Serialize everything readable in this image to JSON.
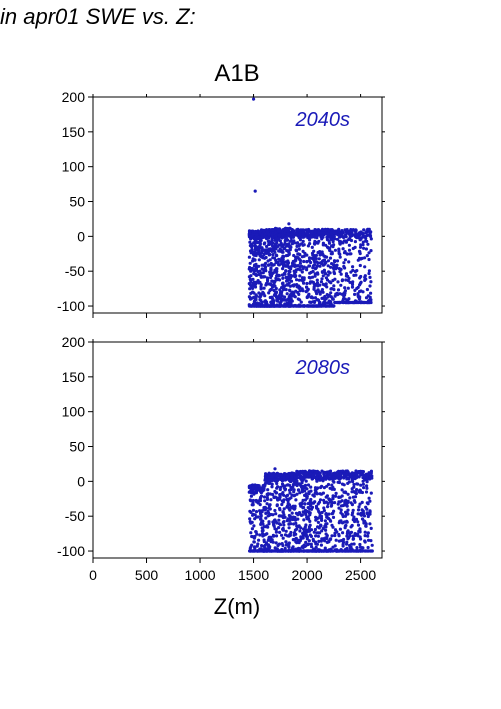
{
  "figure_title": "in apr01 SWE vs. Z:",
  "scenario_title": "A1B",
  "colors": {
    "points": "#1a1ab8",
    "period_label": "#1a1ab8",
    "axis": "#000000"
  },
  "chart_data": [
    {
      "type": "scatter",
      "panel_label": "2040s",
      "xlabel": "",
      "ylabel": "",
      "xlim": [
        0,
        2700
      ],
      "ylim": [
        -110,
        200
      ],
      "yticks": [
        -100,
        -50,
        0,
        50,
        100,
        150,
        200
      ],
      "xticks": [
        0,
        500,
        1000,
        1500,
        2000,
        2500
      ],
      "show_x_tick_labels": false,
      "grid": false,
      "outliers": [
        [
          1500,
          197
        ],
        [
          1515,
          65
        ],
        [
          1830,
          18
        ]
      ],
      "bands": [
        {
          "x0": 1460,
          "x1": 1560,
          "ymin": -100,
          "ymax": 8,
          "n": 260
        },
        {
          "x0": 1560,
          "x1": 1700,
          "ymin": -100,
          "ymax": 10,
          "n": 360
        },
        {
          "x0": 1700,
          "x1": 1850,
          "ymin": -100,
          "ymax": 12,
          "n": 360
        },
        {
          "x0": 1850,
          "x1": 1980,
          "ymin": -100,
          "ymax": 10,
          "n": 220
        },
        {
          "x0": 1990,
          "x1": 2100,
          "ymin": -100,
          "ymax": 10,
          "n": 200
        },
        {
          "x0": 2100,
          "x1": 2250,
          "ymin": -100,
          "ymax": 10,
          "n": 240
        },
        {
          "x0": 2250,
          "x1": 2400,
          "ymin": -95,
          "ymax": 10,
          "n": 160
        },
        {
          "x0": 2400,
          "x1": 2600,
          "ymin": -95,
          "ymax": 10,
          "n": 180
        }
      ]
    },
    {
      "type": "scatter",
      "panel_label": "2080s",
      "xlabel": "Z(m)",
      "ylabel": "",
      "xlim": [
        0,
        2700
      ],
      "ylim": [
        -110,
        200
      ],
      "yticks": [
        -100,
        -50,
        0,
        50,
        100,
        150,
        200
      ],
      "xticks": [
        0,
        500,
        1000,
        1500,
        2000,
        2500
      ],
      "show_x_tick_labels": true,
      "grid": false,
      "outliers": [
        [
          1700,
          18
        ]
      ],
      "bands": [
        {
          "x0": 1460,
          "x1": 1600,
          "ymin": -100,
          "ymax": -5,
          "n": 200
        },
        {
          "x0": 1600,
          "x1": 1780,
          "ymin": -100,
          "ymax": 12,
          "n": 300
        },
        {
          "x0": 1780,
          "x1": 1900,
          "ymin": -100,
          "ymax": 12,
          "n": 220
        },
        {
          "x0": 1900,
          "x1": 2050,
          "ymin": -100,
          "ymax": 15,
          "n": 260
        },
        {
          "x0": 2050,
          "x1": 2200,
          "ymin": -100,
          "ymax": 15,
          "n": 240
        },
        {
          "x0": 2200,
          "x1": 2400,
          "ymin": -100,
          "ymax": 15,
          "n": 260
        },
        {
          "x0": 2400,
          "x1": 2610,
          "ymin": -100,
          "ymax": 15,
          "n": 240
        }
      ]
    }
  ]
}
